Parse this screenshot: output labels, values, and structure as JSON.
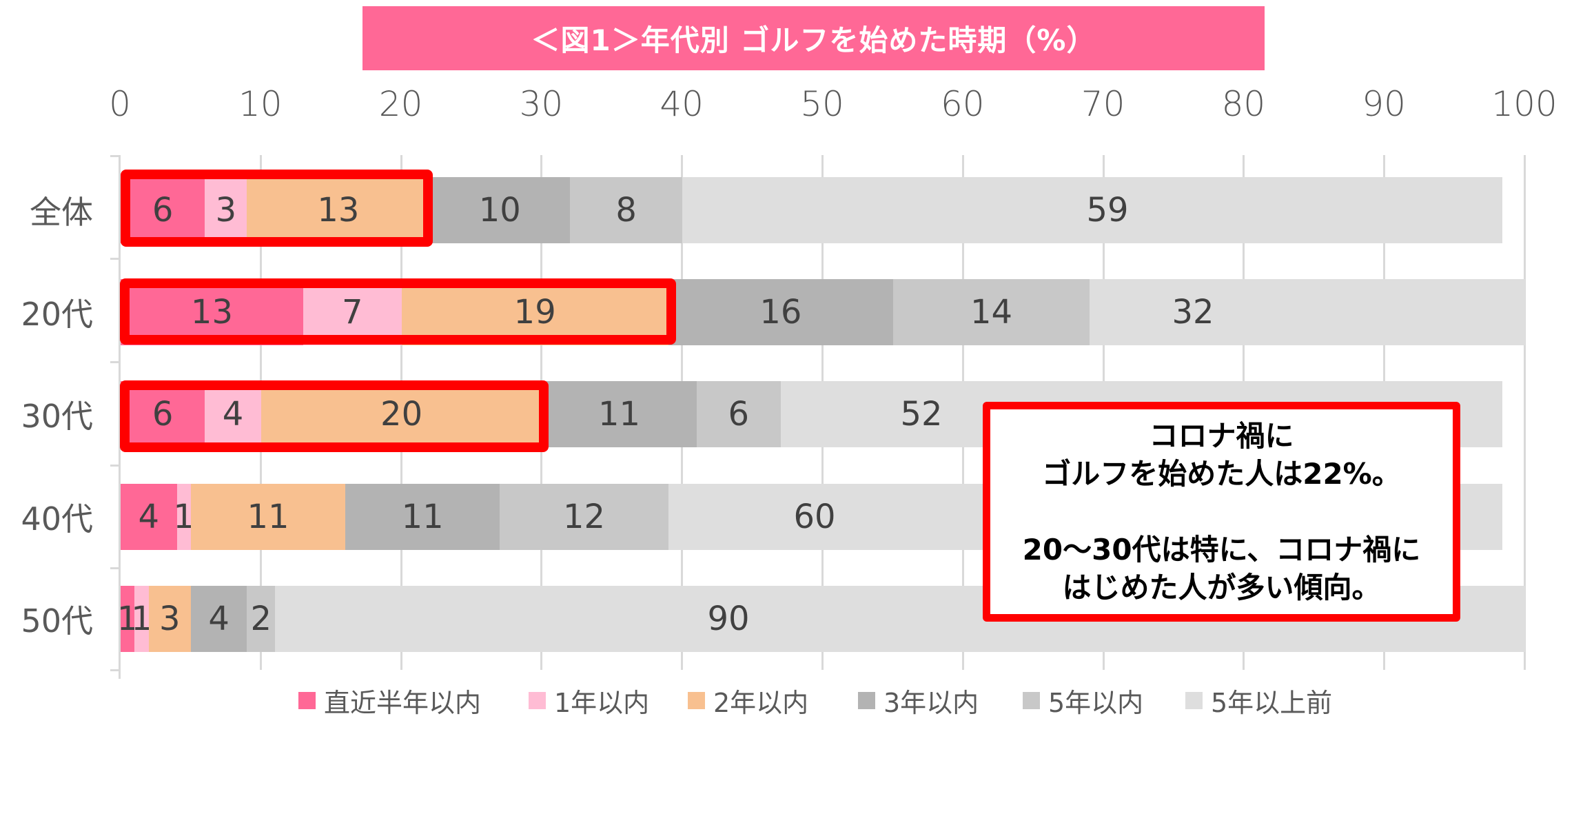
{
  "title": "＜図1＞年代別 ゴルフを始めた時期（%）",
  "axis": {
    "ticks": [
      "0",
      "10",
      "20",
      "30",
      "40",
      "50",
      "60",
      "70",
      "80",
      "90",
      "100"
    ]
  },
  "legend": [
    {
      "label": "直近半年以内",
      "color": "#ff6896"
    },
    {
      "label": "1年以内",
      "color": "#ffbcd4"
    },
    {
      "label": "2年以内",
      "color": "#f8c090"
    },
    {
      "label": "3年以内",
      "color": "#b3b3b3"
    },
    {
      "label": "5年以内",
      "color": "#c8c8c8"
    },
    {
      "label": "5年以上前",
      "color": "#dedede"
    }
  ],
  "callout": {
    "line1": "コロナ禍に",
    "line2": "ゴルフを始めた人は22%。",
    "line3": "20～30代は特に、コロナ禍に",
    "line4": "はじめた人が多い傾向。"
  },
  "chart_data": {
    "type": "bar",
    "orientation": "horizontal",
    "stacked": true,
    "title": "＜図1＞年代別 ゴルフを始めた時期（%）",
    "xlabel": "",
    "ylabel": "",
    "xlim": [
      0,
      100
    ],
    "grid": true,
    "legend_position": "bottom",
    "categories": [
      "全体",
      "20代",
      "30代",
      "40代",
      "50代"
    ],
    "series": [
      {
        "name": "直近半年以内",
        "values": [
          6,
          13,
          6,
          4,
          1
        ]
      },
      {
        "name": "1年以内",
        "values": [
          3,
          7,
          4,
          1,
          1
        ]
      },
      {
        "name": "2年以内",
        "values": [
          13,
          19,
          20,
          11,
          3
        ]
      },
      {
        "name": "3年以内",
        "values": [
          10,
          16,
          11,
          11,
          4
        ]
      },
      {
        "name": "5年以内",
        "values": [
          8,
          14,
          6,
          12,
          2
        ]
      },
      {
        "name": "5年以上前",
        "values": [
          59,
          32,
          52,
          60,
          90
        ]
      }
    ],
    "annotations": [
      "Red highlight boxes around first three segments (直近半年以内〜2年以内) for 全体, 20代, 30代",
      "コロナ禍にゴルフを始めた人は22%。20～30代は特に、コロナ禍にはじめた人が多い傾向。"
    ]
  }
}
